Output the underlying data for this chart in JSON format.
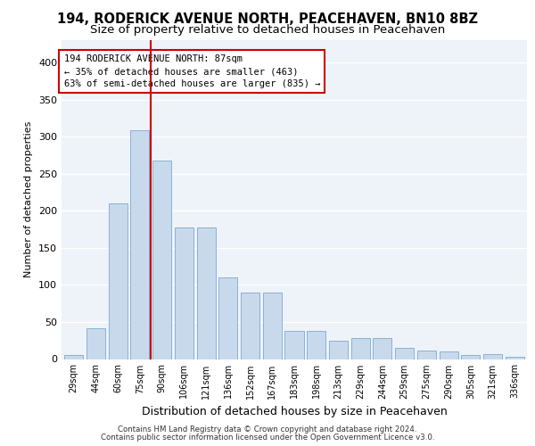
{
  "title1": "194, RODERICK AVENUE NORTH, PEACEHAVEN, BN10 8BZ",
  "title2": "Size of property relative to detached houses in Peacehaven",
  "xlabel": "Distribution of detached houses by size in Peacehaven",
  "ylabel": "Number of detached properties",
  "categories": [
    "29sqm",
    "44sqm",
    "60sqm",
    "75sqm",
    "90sqm",
    "106sqm",
    "121sqm",
    "136sqm",
    "152sqm",
    "167sqm",
    "183sqm",
    "198sqm",
    "213sqm",
    "229sqm",
    "244sqm",
    "259sqm",
    "275sqm",
    "290sqm",
    "305sqm",
    "321sqm",
    "336sqm"
  ],
  "values": [
    5,
    42,
    210,
    308,
    268,
    178,
    178,
    110,
    90,
    90,
    38,
    38,
    25,
    28,
    28,
    15,
    12,
    10,
    6,
    7,
    3
  ],
  "bar_color": "#c9d9ec",
  "bar_edge_color": "#7aaad0",
  "annotation_line1": "194 RODERICK AVENUE NORTH: 87sqm",
  "annotation_line2": "← 35% of detached houses are smaller (463)",
  "annotation_line3": "63% of semi-detached houses are larger (835) →",
  "annotation_box_color": "#ffffff",
  "annotation_box_edge": "#cc0000",
  "red_line_color": "#cc0000",
  "footer1": "Contains HM Land Registry data © Crown copyright and database right 2024.",
  "footer2": "Contains public sector information licensed under the Open Government Licence v3.0.",
  "ylim": [
    0,
    430
  ],
  "yticks": [
    0,
    50,
    100,
    150,
    200,
    250,
    300,
    350,
    400
  ],
  "bg_color": "#eef3f9",
  "grid_color": "#ffffff",
  "title1_fontsize": 10.5,
  "title2_fontsize": 9.5
}
